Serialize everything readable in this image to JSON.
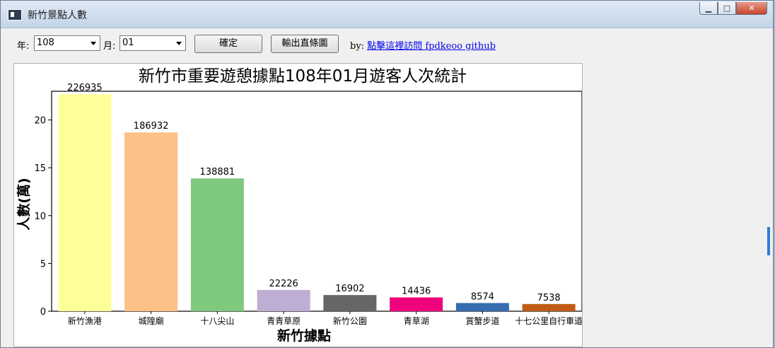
{
  "window": {
    "title": "新竹景點人數",
    "controls": {
      "minimize": "▁",
      "maximize": "□",
      "close": "✕"
    }
  },
  "toolbar": {
    "year_label": "年:",
    "year_value": "108",
    "month_label": "月:",
    "month_value": "01",
    "confirm_label": "確定",
    "export_label": "輸出直條圖",
    "by_label": "by:",
    "link_text": "點擊這裡訪問 fpdkeoo github"
  },
  "chart_data": {
    "type": "bar",
    "title": "新竹市重要遊憩據點108年01月遊客人次統計",
    "xlabel": "新竹據點",
    "ylabel": "人數(萬)",
    "ylim": [
      0,
      23
    ],
    "yticks": [
      0,
      5,
      10,
      15,
      20
    ],
    "grid": false,
    "categories": [
      "新竹漁港",
      "城隍廟",
      "十八尖山",
      "青青草原",
      "新竹公園",
      "青草湖",
      "賞蟹步道",
      "十七公里自行車道"
    ],
    "values": [
      226935,
      186932,
      138881,
      22226,
      16902,
      14436,
      8574,
      7538
    ],
    "colors": [
      "#ffff99",
      "#fdc086",
      "#7fc97f",
      "#beaed4",
      "#666666",
      "#f0027f",
      "#386cb0",
      "#bf5b17"
    ]
  }
}
